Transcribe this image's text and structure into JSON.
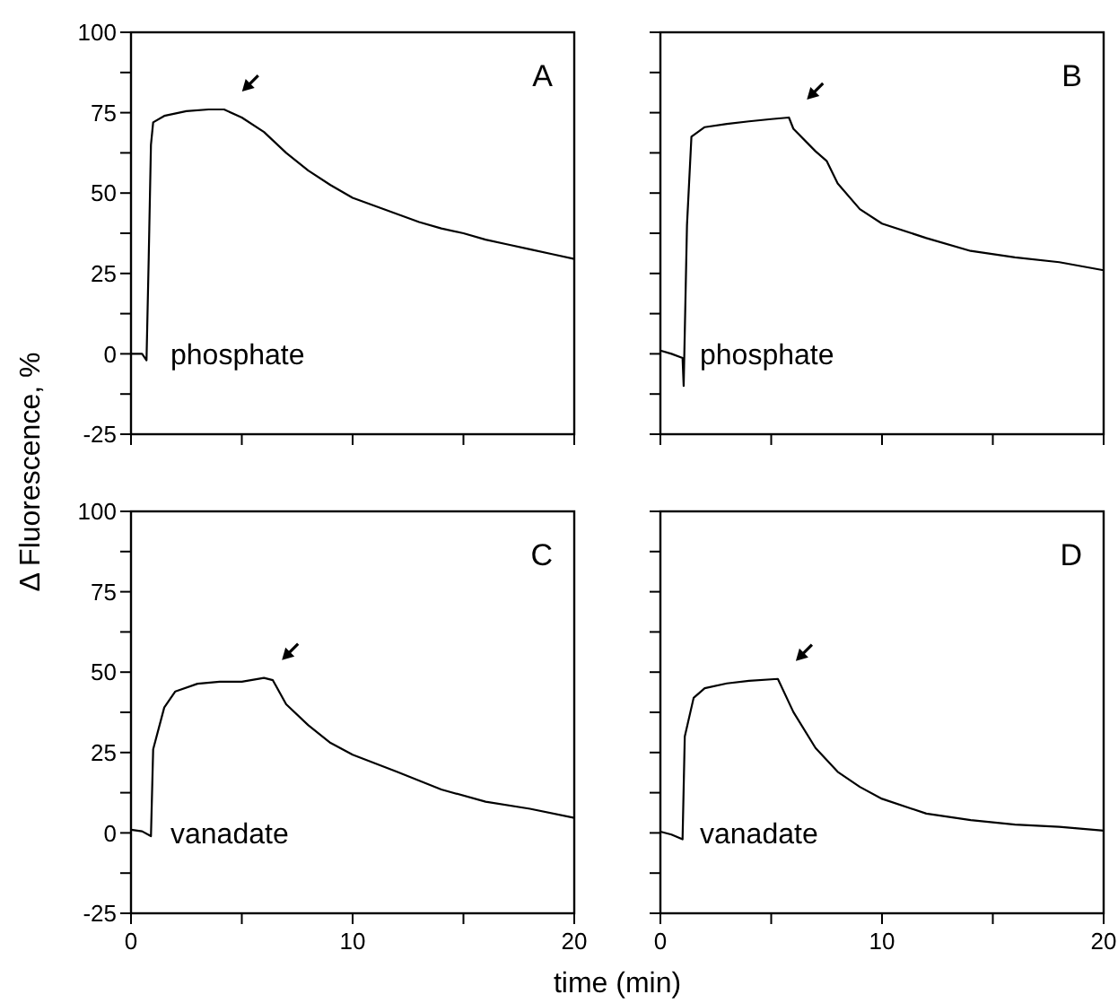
{
  "chart_data": [
    {
      "type": "line",
      "ylabel": "Δ Fluorescence, %",
      "annotations": [
        "A",
        "phosphate"
      ],
      "tick_labels": "y",
      "grid": false,
      "xlim": [
        0,
        20
      ],
      "ylim": [
        -25,
        100
      ],
      "xticks": [
        {
          "value": 0,
          "label": null
        },
        {
          "value": 5,
          "label": null
        },
        {
          "value": 10,
          "label": null
        },
        {
          "value": 15,
          "label": null
        },
        {
          "value": 20,
          "label": null
        }
      ],
      "yticks": [
        -25,
        {
          "value": -12.5,
          "label": null
        },
        0,
        {
          "value": 12.5,
          "label": null
        },
        25,
        {
          "value": 37.5,
          "label": null
        },
        50,
        {
          "value": 62.5,
          "label": null
        },
        75,
        {
          "value": 87.5,
          "label": null
        },
        100
      ],
      "series": [
        {
          "color": "#000000",
          "x": [
            0,
            0.5,
            0.7,
            0.8,
            0.9,
            1.0,
            1.5,
            2.5,
            3.5,
            4.2,
            5,
            6,
            7,
            8,
            9,
            10,
            11,
            12,
            13,
            14,
            15,
            16,
            17,
            18,
            19,
            20
          ],
          "values": [
            0,
            0,
            -2,
            30,
            65,
            72,
            74,
            75.5,
            76,
            76,
            73.5,
            69,
            62.5,
            57,
            52.5,
            48.5,
            46,
            43.5,
            41,
            39,
            37.5,
            35.5,
            34,
            32.5,
            31,
            29.5
          ]
        }
      ]
    },
    {
      "type": "line",
      "annotations": [
        "B",
        "phosphate"
      ],
      "tick_labels": false,
      "grid": false,
      "xlim": [
        0,
        20
      ],
      "ylim": [
        -25,
        100
      ],
      "xticks": [
        {
          "value": 0,
          "label": null
        },
        {
          "value": 5,
          "label": null
        },
        {
          "value": 10,
          "label": null
        },
        {
          "value": 15,
          "label": null
        },
        {
          "value": 20,
          "label": null
        }
      ],
      "yticks": [
        -25,
        {
          "value": -12.5,
          "label": null
        },
        0,
        {
          "value": 12.5,
          "label": null
        },
        25,
        {
          "value": 37.5,
          "label": null
        },
        50,
        {
          "value": 62.5,
          "label": null
        },
        75,
        {
          "value": 87.5,
          "label": null
        },
        100
      ],
      "series": [
        {
          "color": "#000000",
          "x": [
            0,
            0.5,
            1,
            1.05,
            1.2,
            1.4,
            2,
            3,
            4,
            5,
            5.8,
            6,
            7,
            7.5,
            8,
            9,
            10,
            12,
            14,
            16,
            18,
            20
          ],
          "values": [
            1,
            0,
            -1.3,
            -10,
            40,
            67.5,
            70.5,
            71.5,
            72.3,
            73,
            73.5,
            70,
            63,
            60,
            53,
            45,
            40.5,
            36,
            32,
            30,
            28.5,
            26
          ]
        }
      ]
    },
    {
      "type": "line",
      "annotations": [
        "C",
        "vanadate"
      ],
      "grid": false,
      "xlim": [
        0,
        20
      ],
      "ylim": [
        -25,
        100
      ],
      "xticks": [
        0,
        {
          "value": 5,
          "label": null
        },
        10,
        {
          "value": 15,
          "label": null
        },
        20
      ],
      "yticks": [
        -25,
        {
          "value": -12.5,
          "label": null
        },
        0,
        {
          "value": 12.5,
          "label": null
        },
        25,
        {
          "value": 37.5,
          "label": null
        },
        50,
        {
          "value": 62.5,
          "label": null
        },
        75,
        {
          "value": 87.5,
          "label": null
        },
        100
      ],
      "series": [
        {
          "color": "#000000",
          "x": [
            0,
            0.5,
            0.9,
            1.0,
            1.5,
            2,
            3,
            4,
            5,
            6,
            6.4,
            7,
            8,
            9,
            10,
            12,
            14,
            16,
            18,
            20
          ],
          "values": [
            1,
            0.5,
            -1,
            26,
            39,
            44,
            46.4,
            47,
            47,
            48.2,
            47.5,
            40,
            33.5,
            28,
            24.3,
            19,
            13.5,
            9.7,
            7.5,
            4.7
          ]
        }
      ]
    },
    {
      "type": "line",
      "xlabel": "time (min)",
      "annotations": [
        "D",
        "vanadate"
      ],
      "tick_labels": "x",
      "grid": false,
      "xlim": [
        0,
        20
      ],
      "ylim": [
        -25,
        100
      ],
      "xticks": [
        0,
        {
          "value": 5,
          "label": null
        },
        10,
        {
          "value": 15,
          "label": null
        },
        20
      ],
      "yticks": [
        -25,
        {
          "value": -12.5,
          "label": null
        },
        0,
        {
          "value": 12.5,
          "label": null
        },
        25,
        {
          "value": 37.5,
          "label": null
        },
        50,
        {
          "value": 62.5,
          "label": null
        },
        75,
        {
          "value": 87.5,
          "label": null
        },
        100
      ],
      "series": [
        {
          "color": "#000000",
          "x": [
            0,
            0.5,
            1,
            1.1,
            1.5,
            2,
            3,
            4,
            5.3,
            6,
            7,
            8,
            9,
            10,
            12,
            14,
            16,
            18,
            20
          ],
          "values": [
            0.4,
            -0.5,
            -2,
            30,
            42,
            45,
            46.5,
            47.3,
            47.9,
            37.6,
            26.4,
            19,
            14.3,
            10.6,
            6,
            4,
            2.6,
            1.9,
            0.7
          ]
        }
      ]
    }
  ]
}
